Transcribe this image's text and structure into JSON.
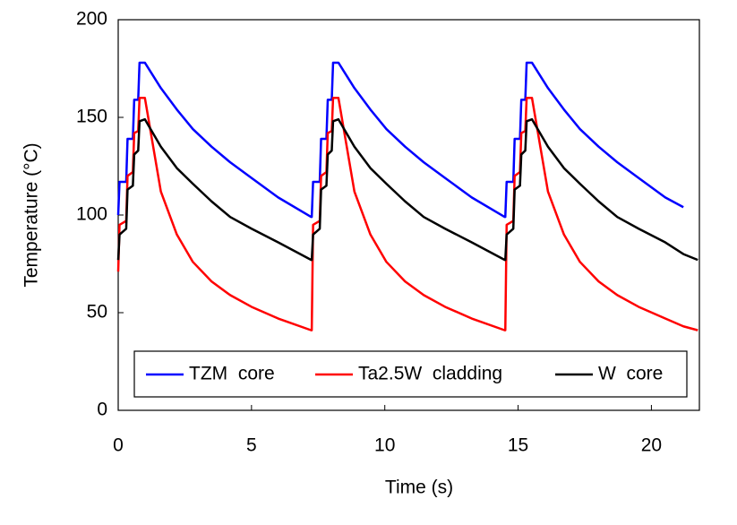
{
  "chart_data": {
    "type": "line",
    "x_label": "Time  (s)",
    "y_label": "Temperature  (°C)",
    "x": [
      0,
      0.05,
      0.3,
      0.35,
      0.55,
      0.6,
      0.75,
      0.8,
      1.0,
      1.6,
      2.2,
      2.8,
      3.5,
      4.2,
      5.0,
      6.0,
      7.24,
      7.26,
      7.31,
      7.56,
      7.61,
      7.81,
      7.86,
      8.01,
      8.06,
      8.26,
      8.86,
      9.46,
      10.06,
      10.76,
      11.46,
      12.26,
      13.26,
      14.5,
      14.52,
      14.57,
      14.82,
      14.87,
      15.07,
      15.12,
      15.27,
      15.32,
      15.52,
      16.12,
      16.72,
      17.32,
      18.02,
      18.72,
      19.52,
      20.52,
      21.2,
      21.74
    ],
    "series": [
      {
        "name": "TZM  core",
        "color": "#0000ff",
        "values": [
          100,
          117,
          117,
          139,
          139,
          159,
          159,
          178,
          178,
          165,
          154,
          144,
          135,
          127,
          119,
          109,
          99,
          99,
          117,
          117,
          139,
          139,
          159,
          159,
          178,
          178,
          165,
          154,
          144,
          135,
          127,
          119,
          109,
          99,
          99,
          117,
          117,
          139,
          139,
          159,
          159,
          178,
          178,
          165,
          154,
          144,
          135,
          127,
          119,
          109,
          104,
          null
        ]
      },
      {
        "name": "Ta2.5W  cladding",
        "color": "#ff0000",
        "values": [
          71,
          95,
          97,
          120,
          122,
          142,
          143,
          160,
          160,
          112,
          90,
          76,
          66,
          59,
          53,
          47,
          41,
          41,
          95,
          97,
          120,
          122,
          142,
          143,
          160,
          160,
          112,
          90,
          76,
          66,
          59,
          53,
          47,
          41,
          41,
          95,
          97,
          120,
          122,
          142,
          143,
          160,
          160,
          112,
          90,
          76,
          66,
          59,
          53,
          47,
          43,
          41
        ]
      },
      {
        "name": "W  core",
        "color": "#000000",
        "values": [
          77,
          90,
          93,
          113,
          115,
          131,
          133,
          148,
          149,
          135,
          124,
          116,
          107,
          99,
          93,
          86,
          77,
          77,
          90,
          93,
          113,
          115,
          131,
          133,
          148,
          149,
          135,
          124,
          116,
          107,
          99,
          93,
          86,
          77,
          77,
          90,
          93,
          113,
          115,
          131,
          133,
          148,
          149,
          135,
          124,
          116,
          107,
          99,
          93,
          86,
          80,
          77
        ]
      }
    ],
    "xlim": [
      0,
      21.8
    ],
    "xticks": [
      0,
      5,
      10,
      15,
      20
    ],
    "ylim": [
      0,
      200
    ],
    "yticks": [
      0,
      50,
      100,
      150,
      200
    ]
  }
}
